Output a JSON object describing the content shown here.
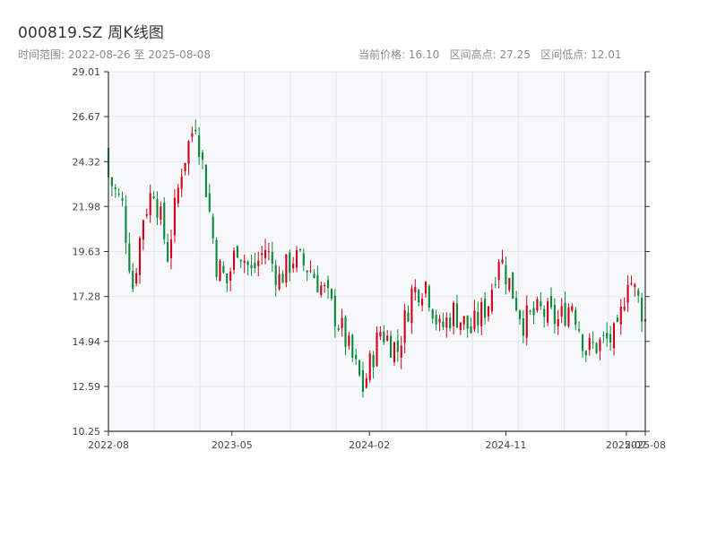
{
  "header": {
    "title": "000819.SZ 周K线图",
    "range_label": "时间范围: 2022-08-26 至 2025-08-08",
    "stats_label": "当前价格: 16.10   区间高点: 27.25   区间低点: 12.01"
  },
  "colors": {
    "up": "#d0021b",
    "down": "#0b8a3a",
    "plot_bg": "#f6f8fb",
    "grid": "#e3e7ec",
    "axis": "#333333"
  },
  "chart_data": {
    "type": "candlestick",
    "title": "000819.SZ 周K线图",
    "start_date": "2022-08-26",
    "end_date": "2025-08-08",
    "current_price": 16.1,
    "range_high": 27.25,
    "range_low": 12.01,
    "ylim": [
      10.25,
      29.01
    ],
    "y_ticks": [
      "29.01",
      "26.67",
      "24.32",
      "21.98",
      "19.63",
      "17.28",
      "14.94",
      "12.59",
      "10.25"
    ],
    "x_ticks": [
      {
        "label": "2022-08",
        "date": "2022-08-26"
      },
      {
        "label": "2023-05",
        "date": "2023-05-01"
      },
      {
        "label": "2024-02",
        "date": "2024-02-01"
      },
      {
        "label": "2024-11",
        "date": "2024-11-01"
      },
      {
        "label": "2025-07",
        "date": "2025-07-01"
      },
      {
        "label": "2025-08",
        "date": "2025-08-08"
      }
    ],
    "close_anchors": [
      [
        "2022-08-26",
        23.5
      ],
      [
        "2022-09-23",
        22.0
      ],
      [
        "2022-10-14",
        17.8
      ],
      [
        "2022-11-04",
        21.5
      ],
      [
        "2022-11-25",
        23.0
      ],
      [
        "2022-12-23",
        19.5
      ],
      [
        "2023-01-20",
        24.0
      ],
      [
        "2023-02-17",
        26.5
      ],
      [
        "2023-03-10",
        23.0
      ],
      [
        "2023-03-31",
        19.0
      ],
      [
        "2023-04-21",
        18.0
      ],
      [
        "2023-05-12",
        20.0
      ],
      [
        "2023-06-09",
        18.5
      ],
      [
        "2023-07-07",
        19.8
      ],
      [
        "2023-08-04",
        18.2
      ],
      [
        "2023-09-01",
        19.3
      ],
      [
        "2023-10-06",
        18.7
      ],
      [
        "2023-11-03",
        17.5
      ],
      [
        "2023-12-08",
        15.5
      ],
      [
        "2024-01-19",
        12.5
      ],
      [
        "2024-02-23",
        15.5
      ],
      [
        "2024-03-29",
        14.5
      ],
      [
        "2024-04-26",
        17.5
      ],
      [
        "2024-05-24",
        18.0
      ],
      [
        "2024-06-21",
        15.5
      ],
      [
        "2024-07-19",
        16.5
      ],
      [
        "2024-08-23",
        15.5
      ],
      [
        "2024-09-27",
        17.0
      ],
      [
        "2024-10-18",
        19.5
      ],
      [
        "2024-11-08",
        18.0
      ],
      [
        "2024-12-06",
        16.0
      ],
      [
        "2025-01-10",
        16.5
      ],
      [
        "2025-02-14",
        16.0
      ],
      [
        "2025-03-14",
        17.0
      ],
      [
        "2025-04-11",
        14.5
      ],
      [
        "2025-05-16",
        14.9
      ],
      [
        "2025-06-13",
        15.2
      ],
      [
        "2025-07-04",
        18.5
      ],
      [
        "2025-08-08",
        16.1
      ]
    ]
  }
}
